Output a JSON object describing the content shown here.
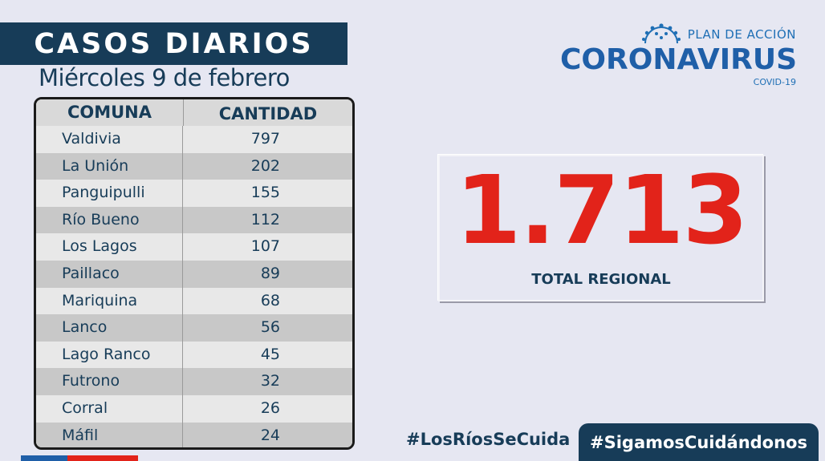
{
  "header": {
    "title": "CASOS DIARIOS",
    "date": "Miércoles 9 de febrero"
  },
  "table": {
    "col1": "COMUNA",
    "col2": "CANTIDAD",
    "rows": [
      {
        "comuna": "Valdivia",
        "cantidad": "797"
      },
      {
        "comuna": "La Unión",
        "cantidad": "202"
      },
      {
        "comuna": "Panguipulli",
        "cantidad": "155"
      },
      {
        "comuna": "Río Bueno",
        "cantidad": "112"
      },
      {
        "comuna": "Los Lagos",
        "cantidad": "107"
      },
      {
        "comuna": "Paillaco",
        "cantidad": "89"
      },
      {
        "comuna": "Mariquina",
        "cantidad": "68"
      },
      {
        "comuna": "Lanco",
        "cantidad": "56"
      },
      {
        "comuna": "Lago Ranco",
        "cantidad": "45"
      },
      {
        "comuna": "Futrono",
        "cantidad": "32"
      },
      {
        "comuna": "Corral",
        "cantidad": "26"
      },
      {
        "comuna": "Máfil",
        "cantidad": "24"
      }
    ]
  },
  "total": {
    "value": "1.713",
    "label": "TOTAL REGIONAL"
  },
  "logo": {
    "top": "PLAN DE ACCIÓN",
    "main": "CORONAVIRUS",
    "sub": "COVID-19",
    "icon": "virus-icon"
  },
  "footer": {
    "hashtag1": "#LosRíosSeCuida",
    "hashtag2": "#SigamosCuidándonos"
  },
  "colors": {
    "navy": "#173c58",
    "red": "#e2231a",
    "blue": "#1f5fa8",
    "background": "#e6e7f2"
  }
}
